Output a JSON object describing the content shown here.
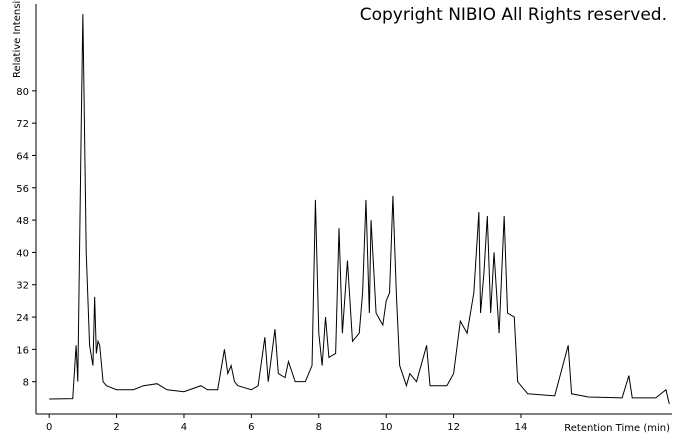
{
  "chart_data": {
    "type": "line",
    "annotation": "Copyright NIBIO All Rights reserved.",
    "x_label": "Retention Time (min)",
    "y_label": "Relative Intensit",
    "xlim": [
      -0.39,
      18.45
    ],
    "ylim": [
      0,
      101
    ],
    "xticks": [
      0,
      2,
      4,
      6,
      8,
      10,
      12,
      14
    ],
    "yticks": [
      8,
      16,
      24,
      32,
      40,
      48,
      56,
      64,
      72,
      80
    ],
    "series": [
      {
        "color": "#000000",
        "x": [
          0,
          0.7,
          0.8,
          0.85,
          0.95,
          1.0,
          1.02,
          1.1,
          1.2,
          1.3,
          1.35,
          1.4,
          1.45,
          1.5,
          1.6,
          1.7,
          2.0,
          2.5,
          2.8,
          3.2,
          3.5,
          4.0,
          4.5,
          4.7,
          5.0,
          5.2,
          5.3,
          5.4,
          5.5,
          5.6,
          6.0,
          6.2,
          6.4,
          6.5,
          6.7,
          6.8,
          7.0,
          7.1,
          7.3,
          7.6,
          7.8,
          7.9,
          8.0,
          8.1,
          8.2,
          8.3,
          8.5,
          8.6,
          8.7,
          8.85,
          9.0,
          9.2,
          9.3,
          9.4,
          9.5,
          9.55,
          9.7,
          9.9,
          10.0,
          10.1,
          10.2,
          10.3,
          10.4,
          10.6,
          10.7,
          10.9,
          11.2,
          11.3,
          11.8,
          12.0,
          12.2,
          12.4,
          12.6,
          12.75,
          12.8,
          12.9,
          13.0,
          13.1,
          13.2,
          13.35,
          13.5,
          13.6,
          13.8,
          13.9,
          14.2,
          15.0,
          15.4,
          15.5,
          16.0,
          17.0,
          17.2,
          17.3,
          18.0,
          18.3,
          18.4
        ],
        "values": [
          3.7,
          3.8,
          17,
          8,
          70,
          99,
          88,
          40,
          17,
          12,
          29,
          15,
          18,
          17,
          8,
          7,
          6,
          6,
          7,
          7.5,
          6,
          5.5,
          7,
          6,
          6,
          16,
          10,
          12,
          8,
          7,
          6,
          7,
          19,
          8,
          21,
          10,
          9,
          13,
          8,
          8,
          12,
          53,
          20,
          12,
          24,
          14,
          15,
          46,
          20,
          38,
          18,
          20,
          30,
          53,
          25,
          48,
          25,
          22,
          28,
          30,
          54,
          30,
          12,
          7,
          10,
          8,
          17,
          7,
          7,
          10,
          23,
          20,
          30,
          50,
          25,
          35,
          49,
          25,
          40,
          20,
          49,
          25,
          24,
          8,
          5,
          4.5,
          17,
          5,
          4.2,
          4,
          9.5,
          4,
          4,
          6,
          2.5
        ]
      }
    ]
  }
}
